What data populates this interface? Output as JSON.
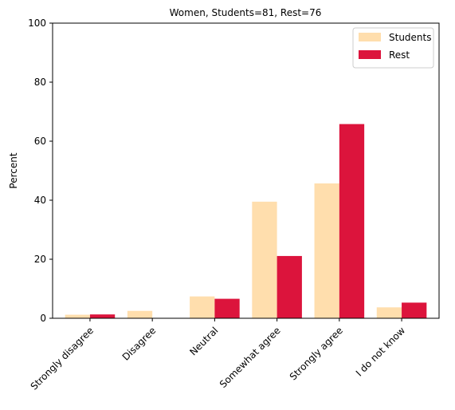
{
  "chart_data": {
    "type": "bar",
    "title": "Women, Students=81, Rest=76",
    "xlabel": "",
    "ylabel": "Percent",
    "ylim": [
      0,
      100
    ],
    "yticks": [
      0,
      20,
      40,
      60,
      80,
      100
    ],
    "categories": [
      "Strongly disagree",
      "Disagree",
      "Neutral",
      "Somewhat agree",
      "Strongly agree",
      "I do not know"
    ],
    "series": [
      {
        "name": "Students",
        "color": "#ffdead",
        "values": [
          1.2,
          2.5,
          7.4,
          39.5,
          45.7,
          3.7
        ]
      },
      {
        "name": "Rest",
        "color": "#dc143c",
        "values": [
          1.3,
          0.0,
          6.6,
          21.1,
          65.8,
          5.3
        ]
      }
    ],
    "legend_position": "top-right",
    "grid": false
  }
}
